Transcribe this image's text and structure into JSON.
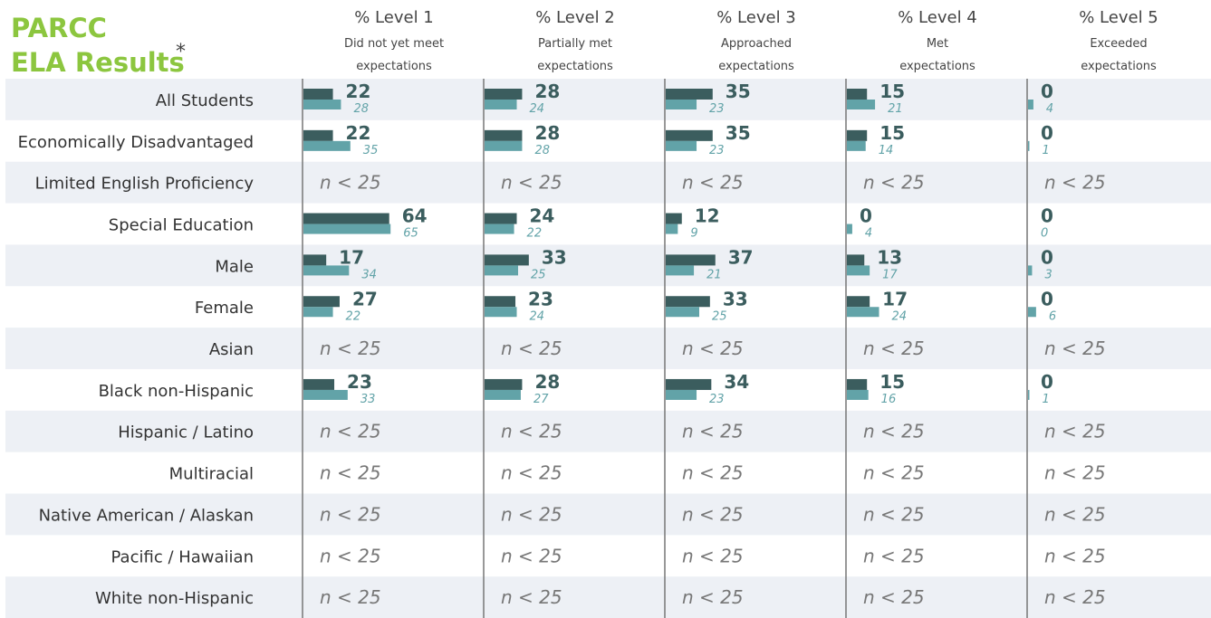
{
  "title": {
    "line1": "PARCC",
    "line2": "ELA Results",
    "marker": "*"
  },
  "columns": [
    {
      "level": "% Level 1",
      "desc1": "Did not yet meet",
      "desc2": "expectations"
    },
    {
      "level": "% Level 2",
      "desc1": "Partially met",
      "desc2": "expectations"
    },
    {
      "level": "% Level 3",
      "desc1": "Approached",
      "desc2": "expectations"
    },
    {
      "level": "% Level 4",
      "desc1": "Met",
      "desc2": "expectations"
    },
    {
      "level": "% Level 5",
      "desc1": "Exceeded",
      "desc2": "expectations"
    }
  ],
  "rows": [
    {
      "label": "All Students",
      "cells": [
        {
          "value": 22,
          "compare": 28
        },
        {
          "value": 28,
          "compare": 24
        },
        {
          "value": 35,
          "compare": 23
        },
        {
          "value": 15,
          "compare": 21
        },
        {
          "value": 0,
          "compare": 4
        }
      ]
    },
    {
      "label": "Economically Disadvantaged",
      "cells": [
        {
          "value": 22,
          "compare": 35
        },
        {
          "value": 28,
          "compare": 28
        },
        {
          "value": 35,
          "compare": 23
        },
        {
          "value": 15,
          "compare": 14
        },
        {
          "value": 0,
          "compare": 1
        }
      ]
    },
    {
      "label": "Limited English Proficiency",
      "cells": [
        "n < 25",
        "n < 25",
        "n < 25",
        "n < 25",
        "n < 25"
      ]
    },
    {
      "label": "Special Education",
      "cells": [
        {
          "value": 64,
          "compare": 65
        },
        {
          "value": 24,
          "compare": 22
        },
        {
          "value": 12,
          "compare": 9
        },
        {
          "value": 0,
          "compare": 4
        },
        {
          "value": 0,
          "compare": 0
        }
      ]
    },
    {
      "label": "Male",
      "cells": [
        {
          "value": 17,
          "compare": 34
        },
        {
          "value": 33,
          "compare": 25
        },
        {
          "value": 37,
          "compare": 21
        },
        {
          "value": 13,
          "compare": 17
        },
        {
          "value": 0,
          "compare": 3
        }
      ]
    },
    {
      "label": "Female",
      "cells": [
        {
          "value": 27,
          "compare": 22
        },
        {
          "value": 23,
          "compare": 24
        },
        {
          "value": 33,
          "compare": 25
        },
        {
          "value": 17,
          "compare": 24
        },
        {
          "value": 0,
          "compare": 6
        }
      ]
    },
    {
      "label": "Asian",
      "cells": [
        "n < 25",
        "n < 25",
        "n < 25",
        "n < 25",
        "n < 25"
      ]
    },
    {
      "label": "Black non-Hispanic",
      "cells": [
        {
          "value": 23,
          "compare": 33
        },
        {
          "value": 28,
          "compare": 27
        },
        {
          "value": 34,
          "compare": 23
        },
        {
          "value": 15,
          "compare": 16
        },
        {
          "value": 0,
          "compare": 1
        }
      ]
    },
    {
      "label": "Hispanic / Latino",
      "cells": [
        "n < 25",
        "n < 25",
        "n < 25",
        "n < 25",
        "n < 25"
      ]
    },
    {
      "label": "Multiracial",
      "cells": [
        "n < 25",
        "n < 25",
        "n < 25",
        "n < 25",
        "n < 25"
      ]
    },
    {
      "label": "Native American / Alaskan",
      "cells": [
        "n < 25",
        "n < 25",
        "n < 25",
        "n < 25",
        "n < 25"
      ]
    },
    {
      "label": "Pacific / Hawaiian",
      "cells": [
        "n < 25",
        "n < 25",
        "n < 25",
        "n < 25",
        "n < 25"
      ]
    },
    {
      "label": "White non-Hispanic",
      "cells": [
        "n < 25",
        "n < 25",
        "n < 25",
        "n < 25",
        "n < 25"
      ]
    }
  ]
}
